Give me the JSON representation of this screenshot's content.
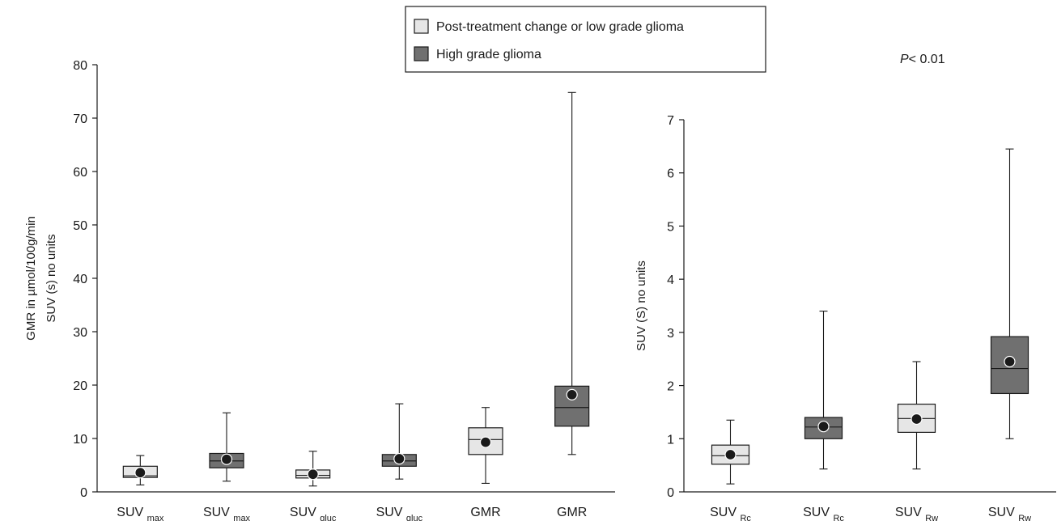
{
  "colors": {
    "low": "#e6e6e6",
    "high": "#707070"
  },
  "legend": {
    "items": [
      {
        "label": "Post-treatment change or low grade glioma",
        "group": "low"
      },
      {
        "label": "High grade glioma",
        "group": "high"
      }
    ]
  },
  "annotation": {
    "p_prefix": "P",
    "p_suffix": "< 0.01"
  },
  "chart_data": [
    {
      "type": "box",
      "ylabel_lines": [
        "GMR in µmol/100g/min",
        "SUV (s) no units"
      ],
      "ylim": [
        0,
        80
      ],
      "yticks": [
        0,
        10,
        20,
        30,
        40,
        50,
        60,
        70,
        80
      ],
      "categories": [
        {
          "main": "SUV",
          "sub": "max",
          "group": "low",
          "min": 1.3,
          "q1": 2.7,
          "median": 3.0,
          "q3": 4.8,
          "max": 6.8,
          "mean": 3.6
        },
        {
          "main": "SUV",
          "sub": "max",
          "group": "high",
          "min": 2.0,
          "q1": 4.5,
          "median": 5.8,
          "q3": 7.2,
          "max": 14.8,
          "mean": 6.1
        },
        {
          "main": "SUV",
          "sub": "gluc",
          "group": "low",
          "min": 1.1,
          "q1": 2.6,
          "median": 3.1,
          "q3": 4.1,
          "max": 7.6,
          "mean": 3.3
        },
        {
          "main": "SUV",
          "sub": "gluc",
          "group": "high",
          "min": 2.4,
          "q1": 4.8,
          "median": 5.8,
          "q3": 7.0,
          "max": 16.5,
          "mean": 6.2
        },
        {
          "main": "GMR",
          "sub": "",
          "group": "low",
          "min": 1.6,
          "q1": 7.0,
          "median": 9.8,
          "q3": 12.0,
          "max": 15.8,
          "mean": 9.3
        },
        {
          "main": "GMR",
          "sub": "",
          "group": "high",
          "min": 7.0,
          "q1": 12.3,
          "median": 15.8,
          "q3": 19.8,
          "max": 74.8,
          "mean": 18.2
        }
      ]
    },
    {
      "type": "box",
      "ylabel_lines": [
        "SUV (S) no units"
      ],
      "ylim": [
        0,
        7
      ],
      "yticks": [
        0,
        1,
        2,
        3,
        4,
        5,
        6,
        7
      ],
      "categories": [
        {
          "main": "SUV",
          "sub": "Rc",
          "group": "low",
          "min": 0.15,
          "q1": 0.52,
          "median": 0.68,
          "q3": 0.88,
          "max": 1.35,
          "mean": 0.7
        },
        {
          "main": "SUV",
          "sub": "Rc",
          "group": "high",
          "min": 0.43,
          "q1": 1.0,
          "median": 1.22,
          "q3": 1.4,
          "max": 3.4,
          "mean": 1.23
        },
        {
          "main": "SUV",
          "sub": "Rw",
          "group": "low",
          "min": 0.43,
          "q1": 1.12,
          "median": 1.38,
          "q3": 1.65,
          "max": 2.45,
          "mean": 1.37
        },
        {
          "main": "SUV",
          "sub": "Rw",
          "group": "high",
          "min": 1.0,
          "q1": 1.85,
          "median": 2.32,
          "q3": 2.92,
          "max": 6.45,
          "mean": 2.45
        }
      ]
    }
  ]
}
